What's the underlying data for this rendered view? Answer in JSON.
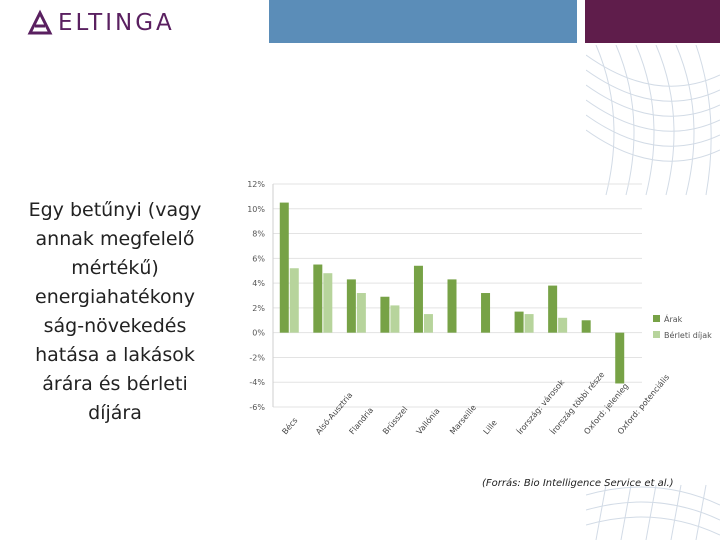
{
  "header": {
    "logo_text": "ELTINGA",
    "logo_icon": "eltinga-logo-icon",
    "colors": {
      "blue": "#5b8db8",
      "purple": "#5f1d4b",
      "logo": "#5a2060"
    }
  },
  "side_text": "Egy betűnyi (vagy annak megfelelő mértékű) energiahatékony ság-növekedés hatása a lakások árára és bérleti díjára",
  "source_text": "(Forrás: Bio Intelligence Service et al.)",
  "chart_data": {
    "type": "bar",
    "categories": [
      "Bécs",
      "Alsó-Ausztria",
      "Flandria",
      "Brüsszel",
      "Vallónia",
      "Marseille",
      "Lille",
      "Írország: városok",
      "Írország többi része",
      "Oxford: jelenleg",
      "Oxford: potenciális"
    ],
    "series": [
      {
        "name": "Árak",
        "color": "#77a246",
        "values": [
          10.5,
          5.5,
          4.3,
          2.9,
          5.4,
          4.3,
          3.2,
          1.7,
          3.8,
          1.0,
          -4.1
        ]
      },
      {
        "name": "Bérleti díjak",
        "color": "#b7d49c",
        "values": [
          5.2,
          4.8,
          3.2,
          2.2,
          1.5,
          null,
          null,
          1.5,
          1.2,
          null,
          null
        ]
      }
    ],
    "ylim": [
      -6,
      12
    ],
    "yticks": [
      "12%",
      "10%",
      "8%",
      "6%",
      "4%",
      "2%",
      "0%",
      "-2%",
      "-4%",
      "-6%"
    ],
    "grid": true,
    "legend": "right"
  }
}
